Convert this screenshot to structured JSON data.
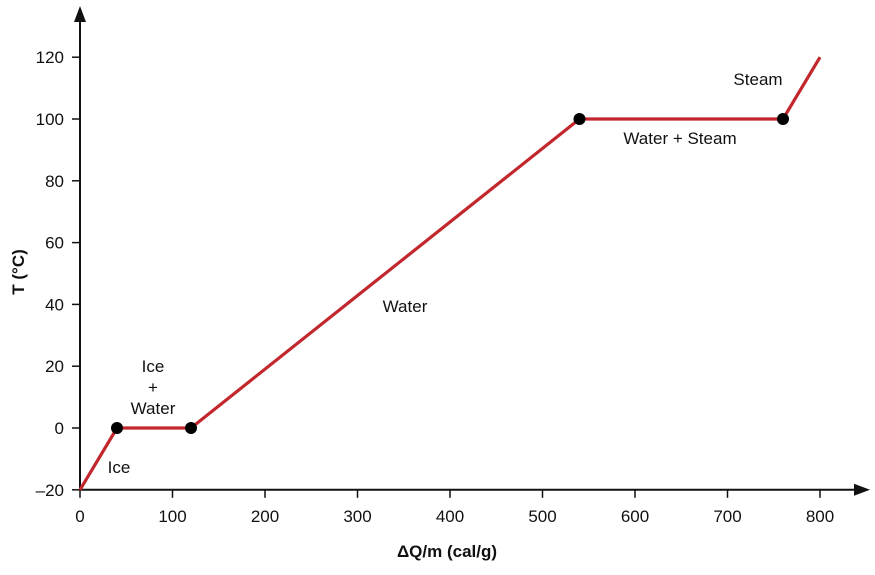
{
  "chart_data": {
    "type": "line",
    "xlabel": "ΔQ/m (cal/g)",
    "ylabel": "T (°C)",
    "xlim": [
      0,
      840
    ],
    "ylim": [
      -20,
      130
    ],
    "xticks": [
      0,
      100,
      200,
      300,
      400,
      500,
      600,
      700,
      800
    ],
    "yticks": [
      -20,
      0,
      20,
      40,
      60,
      80,
      100,
      120
    ],
    "xtick_labels": [
      "0",
      "100",
      "200",
      "300",
      "400",
      "500",
      "600",
      "700",
      "800"
    ],
    "ytick_labels": [
      "–20",
      "0",
      "20",
      "40",
      "60",
      "80",
      "100",
      "120"
    ],
    "grid": false,
    "series": [
      {
        "x": [
          0,
          40,
          120,
          540,
          760,
          800
        ],
        "y": [
          -20,
          0,
          0,
          100,
          100,
          120
        ],
        "color": "#c1272d"
      }
    ],
    "markers": [
      {
        "x": 40,
        "y": 0
      },
      {
        "x": 120,
        "y": 0
      },
      {
        "x": 540,
        "y": 100
      },
      {
        "x": 760,
        "y": 100
      }
    ],
    "annotations": [
      {
        "lines": [
          "Ice"
        ]
      },
      {
        "lines": [
          "Ice",
          "+",
          "Water"
        ]
      },
      {
        "lines": [
          "Water"
        ]
      },
      {
        "lines": [
          "Water + Steam"
        ]
      },
      {
        "lines": [
          "Steam"
        ]
      }
    ]
  }
}
